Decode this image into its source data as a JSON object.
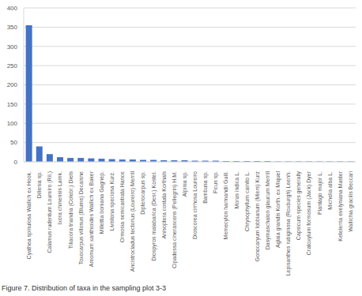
{
  "chart_data": {
    "type": "bar",
    "title": "Figure 7. Distribution of taxa in the sampling plot 3-3",
    "categories": [
      "Cyathea spinulosa Wallich ex Hook.",
      "Dillenia sp.",
      "Calamus rudentum Loureiro (Ril.)",
      "Ixora chinensis Lamk.",
      "Tiliacora triandra (Colebr.) Diels",
      "Toxocarpus villosus (Blume) Decaisne",
      "Amomum xanthioides Wallich ex Baker",
      "Millettia boniana Gagnep.",
      "Livistona speciosa Kurz.",
      "Ormosia semicastrata Hance",
      "Ancistrocladus tectorius (Loureiro) Merrill",
      "Dipterocarpus sp.",
      "Diospyros malabarica (Desr.) Kostel.",
      "Anisoptera costata Korthals",
      "Cipadessa cinerascens (Pellegrin) H.M.",
      "Alpinia sp.",
      "Dioscorea cirrhosa Loureiro",
      "Bambusa sp.",
      "Ficus sp.",
      "Memecylon harmandii Guill.",
      "Morus indica L.",
      "Chrysophyllum cainito L.",
      "Gonocaryum lobbianum (Miers) Kurz",
      "Dasymaschalon glaucum Merrill",
      "Aglaia grandis Korth. ex Miquel",
      "Lepisanthes rubiginosa (Roxburgh) Leenh.",
      "Capsicum species generally",
      "Cratoxylum formosum (Jack) Dyer",
      "Plantago major L.",
      "Michelia alba L.",
      "Ketelerria evelyniana Master",
      "Wallichia gracilis Beccari"
    ],
    "values": [
      355,
      40,
      20,
      12,
      10,
      10,
      9,
      8,
      7,
      6,
      6,
      5,
      5,
      4,
      4,
      4,
      3,
      3,
      3,
      2,
      2,
      2,
      2,
      2,
      1,
      1,
      1,
      1,
      1,
      1,
      1,
      1
    ],
    "color": "#4472c4",
    "ylim": [
      0,
      400
    ],
    "yticks": [
      0,
      50,
      100,
      150,
      200,
      250,
      300,
      350,
      400
    ],
    "grid": true
  }
}
